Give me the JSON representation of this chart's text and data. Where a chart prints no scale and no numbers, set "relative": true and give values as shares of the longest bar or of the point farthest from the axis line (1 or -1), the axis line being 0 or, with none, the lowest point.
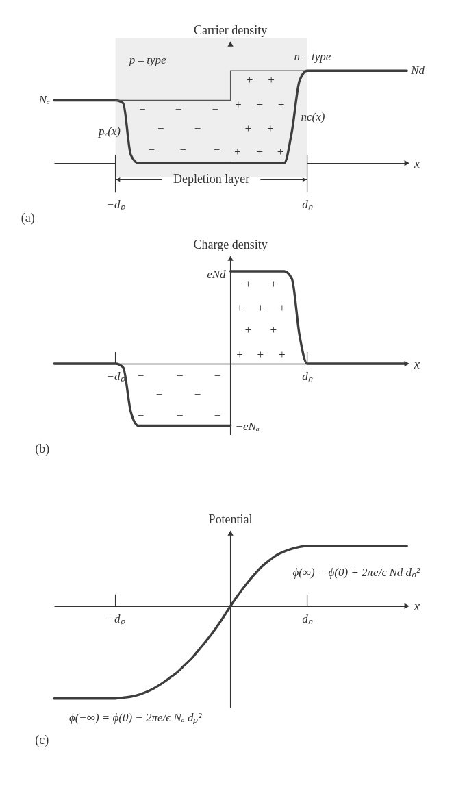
{
  "chart_data": [
    {
      "type": "line",
      "relative": true,
      "title": "(a)",
      "ylabel": "Carrier density",
      "xlabel": "x",
      "categories": [
        null,
        null,
        null,
        null,
        null,
        null,
        null,
        null,
        "−dₚ",
        null,
        null,
        null,
        null,
        null,
        null,
        null,
        null,
        null,
        null,
        null,
        null,
        null,
        null,
        null,
        null,
        null,
        null,
        null,
        null,
        null,
        null,
        null,
        null,
        "dₙ",
        null,
        null,
        null,
        null,
        null,
        null,
        null,
        null,
        null,
        null,
        null,
        null,
        null
      ],
      "series": [
        {
          "name": "pᵥ(x)",
          "color": "#3d3d3d",
          "values": [
            0.68,
            0.68,
            0.68,
            0.68,
            0.68,
            0.68,
            0.68,
            0.68,
            0.68,
            0.65,
            0.09,
            0,
            0,
            0,
            0,
            0,
            0,
            0,
            0,
            0,
            0,
            0,
            0,
            0,
            null,
            null,
            null,
            null,
            null,
            null,
            null,
            null,
            null,
            null,
            null,
            null,
            null,
            null,
            null,
            null,
            null,
            null,
            null,
            null,
            null,
            null,
            null
          ]
        },
        {
          "name": "nc(x)",
          "color": "#3d3d3d",
          "values": [
            null,
            null,
            null,
            null,
            null,
            null,
            null,
            null,
            null,
            null,
            null,
            null,
            null,
            null,
            null,
            null,
            null,
            null,
            null,
            null,
            null,
            null,
            null,
            0,
            0,
            0,
            0,
            0,
            0,
            0,
            0,
            0.34,
            0.89,
            1,
            1,
            1,
            1,
            1,
            1,
            1,
            1,
            1,
            1,
            1,
            1,
            1,
            1
          ]
        },
        {
          "type": "step",
          "color": "#555555",
          "values": [
            null,
            null,
            null,
            null,
            null,
            null,
            null,
            null,
            0.68,
            0.68,
            0.68,
            0.68,
            0.68,
            0.68,
            0.68,
            0.68,
            0.68,
            0.68,
            0.68,
            0.68,
            0.68,
            0.68,
            0.68,
            1,
            1,
            1,
            1,
            1,
            1,
            1,
            1,
            1,
            1,
            1,
            null,
            null,
            null,
            null,
            null,
            null,
            null,
            null,
            null,
            null,
            null,
            null,
            null
          ]
        }
      ],
      "bands": [
        {
          "axis": "x",
          "from": "−dₚ",
          "to": "dₙ",
          "label": "Depletion layer",
          "color": "#eeeeee"
        }
      ],
      "annotations": [
        "Nₐ",
        "Nd",
        "p – type",
        "n – type",
        "−",
        "−",
        "−",
        "−",
        "−",
        "−",
        "−",
        "−",
        "+",
        "+",
        "+",
        "+",
        "+",
        "+",
        "+",
        "+",
        "+",
        "+"
      ]
    },
    {
      "type": "line",
      "relative": true,
      "title": "(b)",
      "ylabel": "Charge density",
      "xlabel": "x",
      "categories": [
        null,
        null,
        null,
        null,
        null,
        null,
        null,
        null,
        "−dₚ",
        null,
        null,
        null,
        null,
        null,
        null,
        null,
        null,
        null,
        null,
        null,
        null,
        null,
        null,
        null,
        null,
        null,
        null,
        null,
        null,
        null,
        null,
        null,
        null,
        "dₙ",
        null,
        null,
        null,
        null,
        null,
        null,
        null,
        null,
        null,
        null,
        null,
        null,
        null
      ],
      "series": [
        {
          "color": "#3d3d3d",
          "values": [
            0,
            0,
            0,
            0,
            0,
            0,
            0,
            0,
            0,
            -0.04,
            -0.52,
            -0.67,
            -0.67,
            -0.67,
            -0.67,
            -0.67,
            -0.67,
            -0.67,
            -0.67,
            -0.67,
            -0.67,
            -0.67,
            -0.67,
            -0.67,
            null,
            null,
            null,
            null,
            null,
            null,
            null,
            null,
            null,
            null,
            null,
            null,
            null,
            null,
            null,
            null,
            null,
            null,
            null,
            null,
            null,
            null,
            null
          ]
        },
        {
          "color": "#3d3d3d",
          "values": [
            null,
            null,
            null,
            null,
            null,
            null,
            null,
            null,
            null,
            null,
            null,
            null,
            null,
            null,
            null,
            null,
            null,
            null,
            null,
            null,
            null,
            null,
            null,
            1,
            1,
            1,
            1,
            1,
            1,
            1,
            1,
            0.92,
            0.31,
            0,
            0,
            0,
            0,
            0,
            0,
            0,
            0,
            0,
            0,
            0,
            0,
            0,
            0
          ]
        }
      ],
      "annotations": [
        "eNd",
        "−eNₐ",
        "−",
        "−",
        "−",
        "−",
        "−",
        "−",
        "−",
        "−",
        "+",
        "+",
        "+",
        "+",
        "+",
        "+",
        "+",
        "+",
        "+",
        "+"
      ]
    },
    {
      "type": "line",
      "relative": true,
      "title": "(c)",
      "ylabel": "Potential",
      "xlabel": "x",
      "categories": [
        null,
        null,
        null,
        null,
        null,
        null,
        null,
        null,
        "−dₚ",
        null,
        null,
        null,
        null,
        null,
        null,
        null,
        null,
        null,
        null,
        null,
        null,
        null,
        null,
        null,
        null,
        null,
        null,
        null,
        null,
        null,
        null,
        null,
        null,
        "dₙ",
        null,
        null,
        null,
        null,
        null,
        null,
        null,
        null,
        null,
        null,
        null,
        null,
        null
      ],
      "series": [
        {
          "color": "#3d3d3d",
          "values": [
            -1,
            -1,
            -1,
            -1,
            -1,
            -1,
            -1,
            -1,
            -1,
            -0.99,
            -0.98,
            -0.96,
            -0.93,
            -0.89,
            -0.84,
            -0.78,
            -0.72,
            -0.64,
            -0.56,
            -0.46,
            -0.36,
            -0.25,
            -0.13,
            0,
            0.12,
            0.23,
            0.33,
            0.42,
            0.49,
            0.55,
            0.59,
            0.62,
            0.64,
            0.65,
            0.65,
            0.65,
            0.65,
            0.65,
            0.65,
            0.65,
            0.65,
            0.65,
            0.65,
            0.65,
            0.65,
            0.65,
            0.65
          ]
        }
      ],
      "annotations": [
        "ϕ(∞) = ϕ(0) + 2πe/ϵ Nd dₙ²",
        "ϕ(−∞) = ϕ(0) − 2πe/ϵ Nₐ dₚ²"
      ]
    }
  ]
}
